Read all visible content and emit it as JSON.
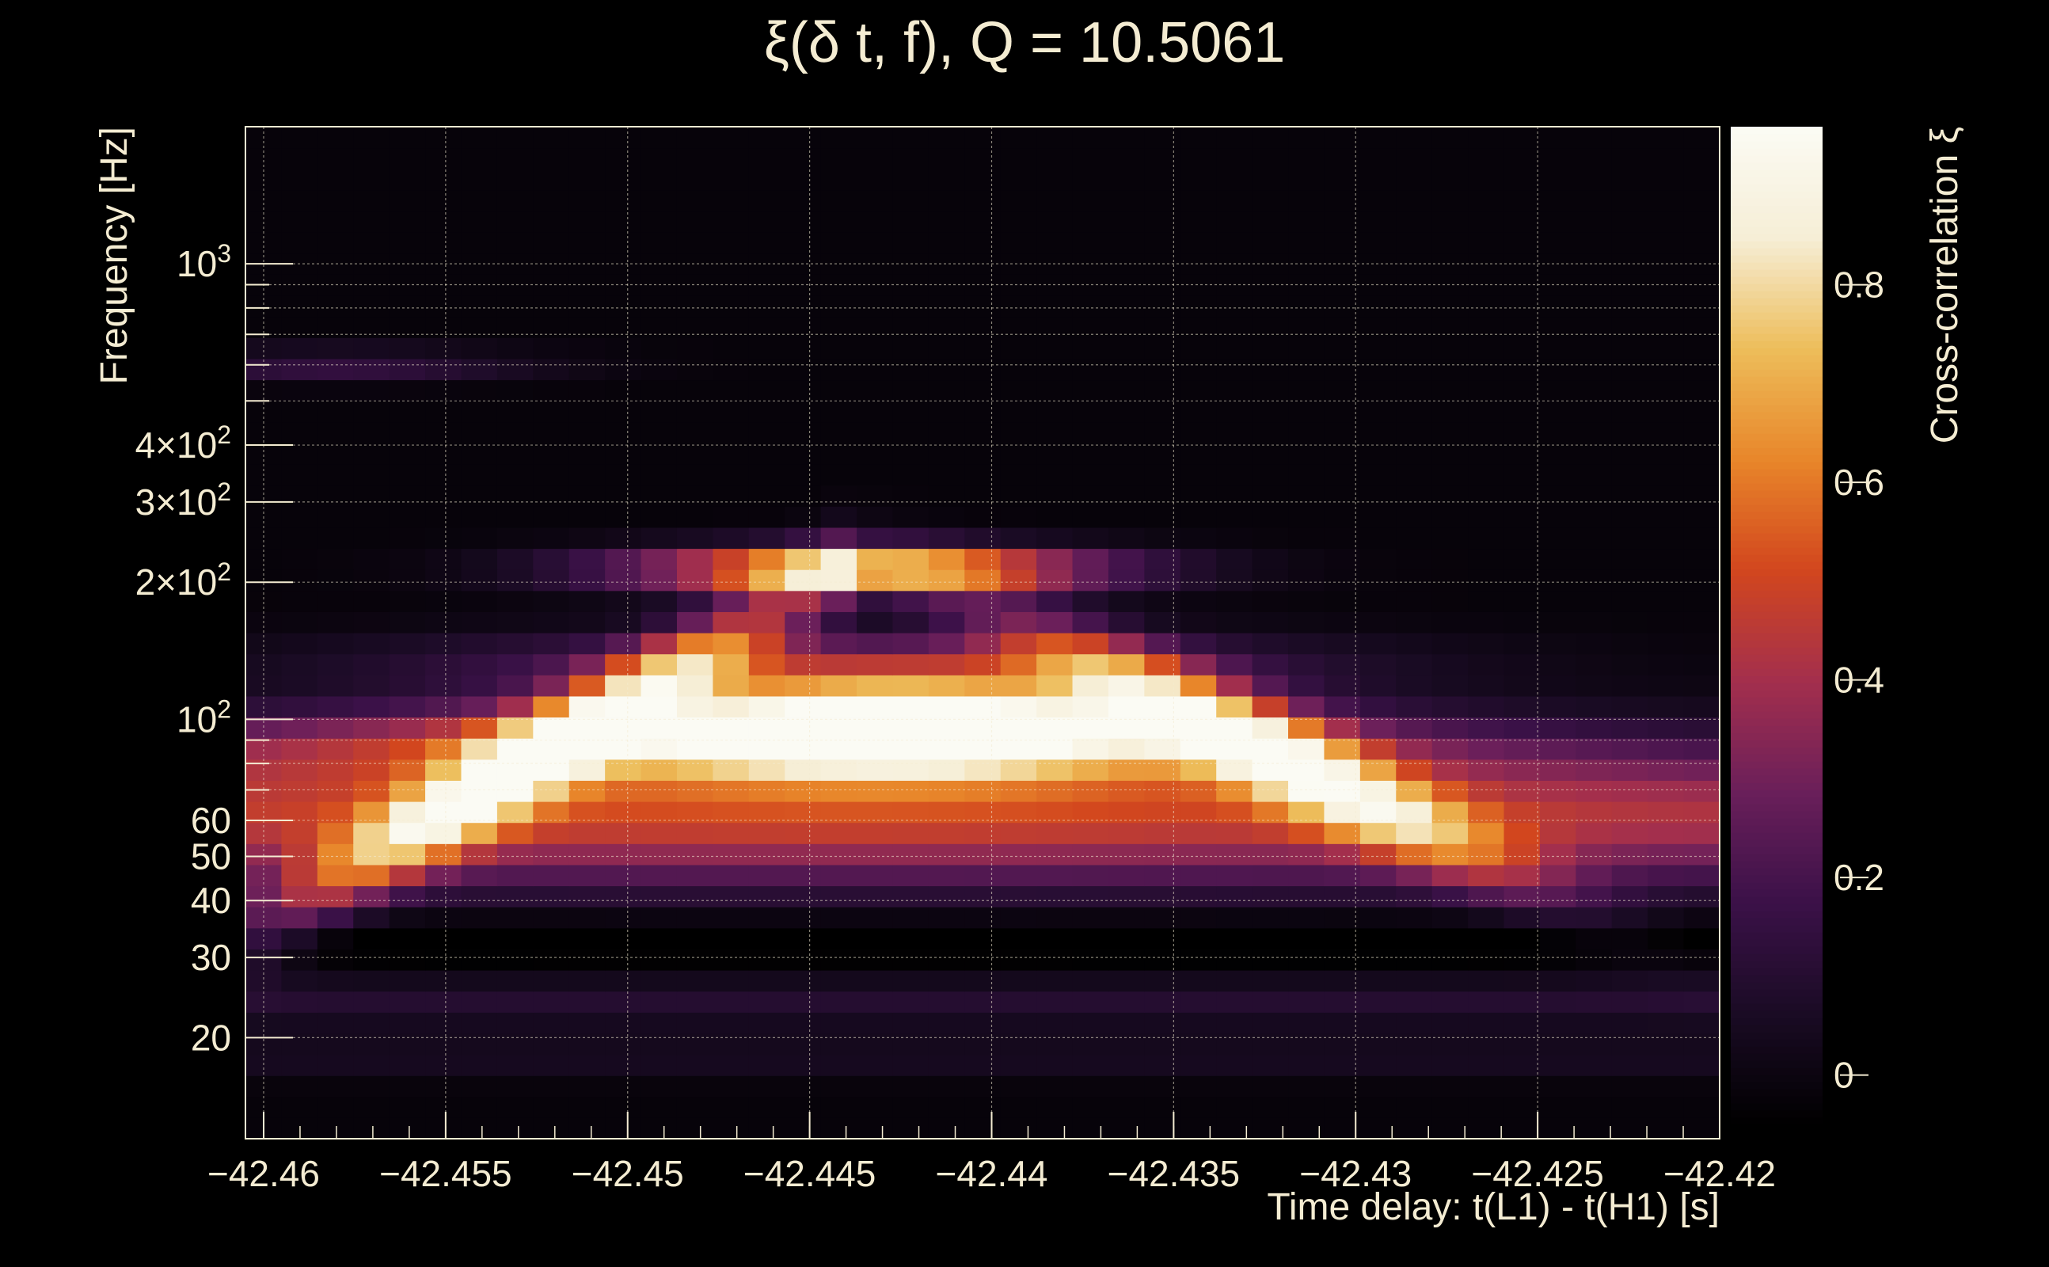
{
  "chart_data": {
    "type": "heatmap",
    "title": "ξ(δ t, f), Q = 10.5061",
    "xlabel": "Time delay: t(L1) - t(H1) [s]",
    "ylabel": "Frequency [Hz]",
    "colorbar_label": "Cross-correlation ξ",
    "xlim": [
      -42.4605,
      -42.42
    ],
    "ylim_hz": [
      12,
      2000
    ],
    "yscale": "log",
    "x_tick_values": [
      -42.46,
      -42.455,
      -42.45,
      -42.445,
      -42.44,
      -42.435,
      -42.43,
      -42.425,
      -42.42
    ],
    "x_tick_labels": [
      "−42.46",
      "−42.455",
      "−42.45",
      "−42.445",
      "−42.44",
      "−42.435",
      "−42.43",
      "−42.425",
      "−42.42"
    ],
    "y_ticks": [
      {
        "value": 20,
        "base": "20",
        "exp": ""
      },
      {
        "value": 30,
        "base": "30",
        "exp": ""
      },
      {
        "value": 40,
        "base": "40",
        "exp": ""
      },
      {
        "value": 50,
        "base": "50",
        "exp": ""
      },
      {
        "value": 60,
        "base": "60",
        "exp": ""
      },
      {
        "value": 100,
        "base": "10",
        "exp": "2"
      },
      {
        "value": 200,
        "base": "2×10",
        "exp": "2"
      },
      {
        "value": 300,
        "base": "3×10",
        "exp": "2"
      },
      {
        "value": 400,
        "base": "4×10",
        "exp": "2"
      },
      {
        "value": 1000,
        "base": "10",
        "exp": "3"
      }
    ],
    "colorbar_range": [
      -0.05,
      0.96
    ],
    "colorbar_ticks": [
      0,
      0.2,
      0.4,
      0.6,
      0.8
    ],
    "colorbar_tick_labels": [
      "0",
      "0.2",
      "0.4",
      "0.6",
      "0.8"
    ],
    "colormap": "inferno-like",
    "colormap_stops": [
      "#000000",
      "#1a0b24",
      "#3b1148",
      "#6a1f5a",
      "#a32f4d",
      "#d2461e",
      "#e8862a",
      "#edbd5a",
      "#f6eed6",
      "#fbfbf4"
    ],
    "grid": true,
    "features": {
      "main_peak": {
        "x": -42.4425,
        "f_hz": 105,
        "value": 0.96
      },
      "upper_band": {
        "x": -42.4435,
        "f_hz": 215,
        "value": 0.78
      }
    }
  }
}
